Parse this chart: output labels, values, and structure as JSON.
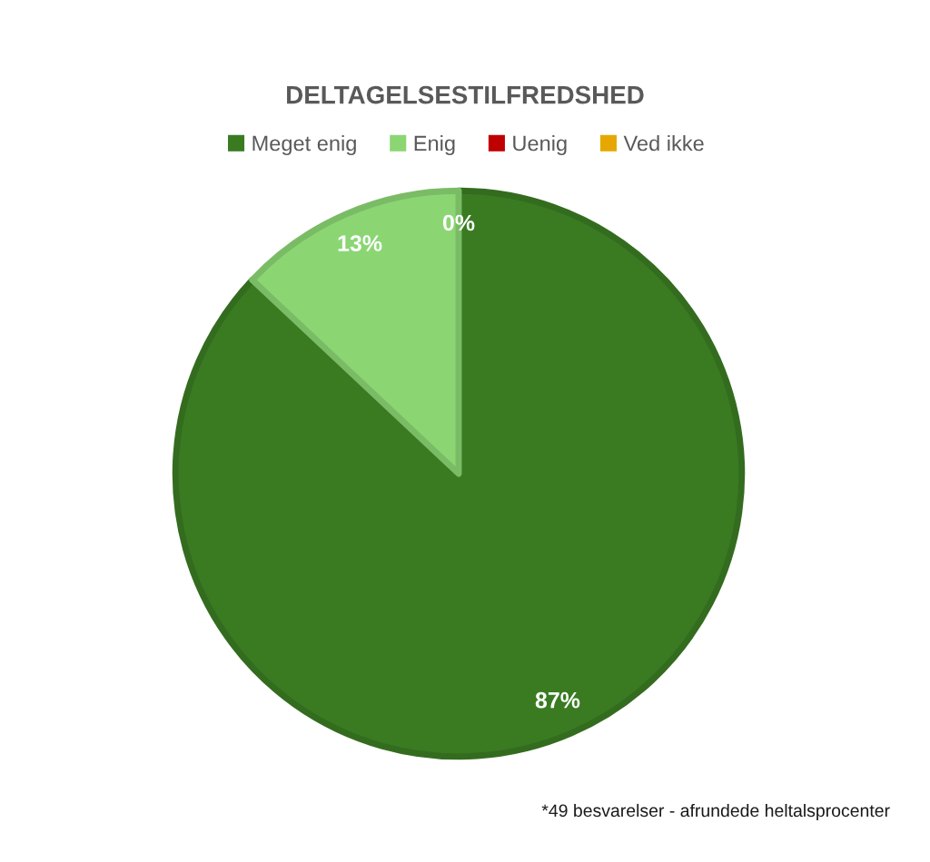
{
  "chart_data": {
    "type": "pie",
    "title": "DELTAGELSESTILFREDSHED",
    "categories": [
      "Meget enig",
      "Enig",
      "Uenig",
      "Ved ikke"
    ],
    "values": [
      87,
      13,
      0,
      0
    ],
    "colors": [
      "#3a7b22",
      "#8bd673",
      "#c00000",
      "#e6a800"
    ],
    "value_labels": [
      "87%",
      "13%",
      "0%",
      null
    ],
    "legend": "top",
    "annotations": [
      "*49 besvarelser - afrundede heltalsprocenter"
    ]
  }
}
